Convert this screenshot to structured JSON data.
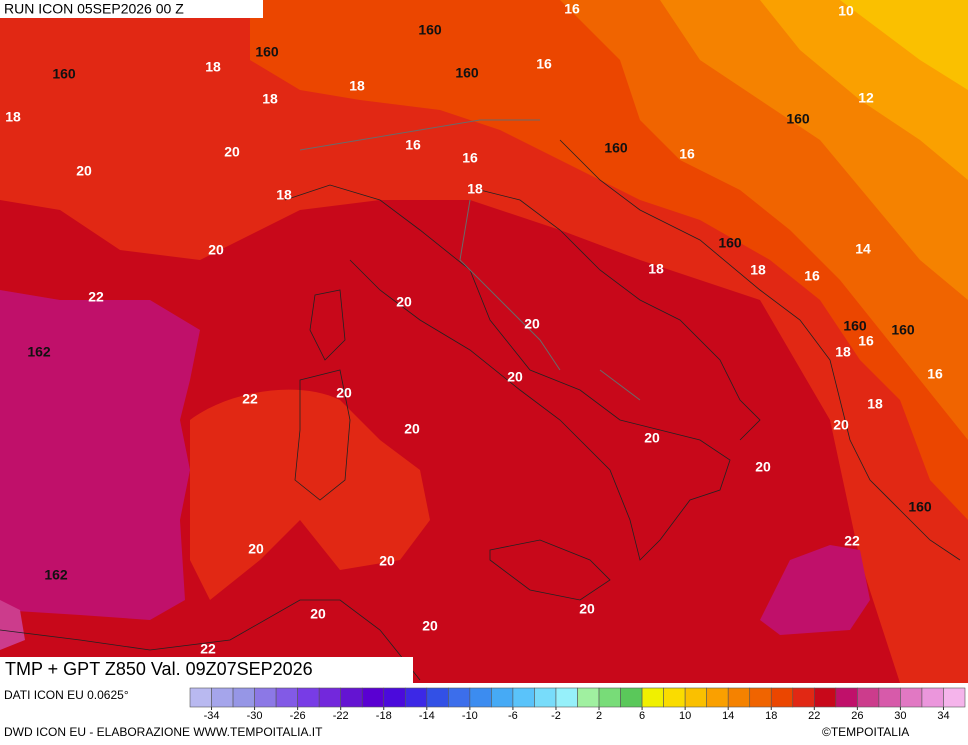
{
  "header": {
    "run": "RUN ICON 05SEP2026 00 Z"
  },
  "map": {
    "contour_labels": [
      16,
      10,
      160,
      160,
      18,
      160,
      160,
      16,
      18,
      18,
      12,
      18,
      160,
      20,
      16,
      16,
      160,
      16,
      20,
      18,
      18,
      160,
      14,
      20,
      18,
      18,
      16,
      22,
      20,
      20,
      160,
      160,
      162,
      18,
      16,
      16,
      20,
      22,
      20,
      18,
      20,
      20,
      20,
      20,
      160,
      22,
      20,
      20,
      162,
      20,
      20,
      20,
      22
    ]
  },
  "footer": {
    "title": "TMP + GPT Z850 Val. 09Z07SEP2026",
    "data_source": "DATI ICON EU 0.0625°",
    "credit": "DWD ICON EU - ELABORAZIONE WWW.TEMPOITALIA.IT",
    "copyright": "©TEMPOITALIA"
  },
  "color_scale": {
    "colors": [
      "#b9b9f0",
      "#a5a5eb",
      "#9696e6",
      "#8c78e6",
      "#825ae6",
      "#783ce6",
      "#7328dc",
      "#6414d2",
      "#5a00d2",
      "#4b0adc",
      "#3c28e6",
      "#3250e6",
      "#3c6eeb",
      "#3c8cf0",
      "#46aaf5",
      "#5ac3fa",
      "#78dcfa",
      "#96f0fa",
      "#a0f0a0",
      "#78dc78",
      "#5ac85a",
      "#f0f000",
      "#fadc00",
      "#fac000",
      "#faa000",
      "#f58200",
      "#f06400",
      "#eb4600",
      "#e12814",
      "#c8081a",
      "#c0106a",
      "#cc3c8c",
      "#d75aaa",
      "#e178c3",
      "#eb96dc",
      "#f5b4eb"
    ],
    "ticks": [
      -34,
      -30,
      -26,
      -22,
      -18,
      -14,
      -10,
      -6,
      -2,
      2,
      6,
      10,
      14,
      18,
      22,
      26,
      30,
      34
    ]
  }
}
